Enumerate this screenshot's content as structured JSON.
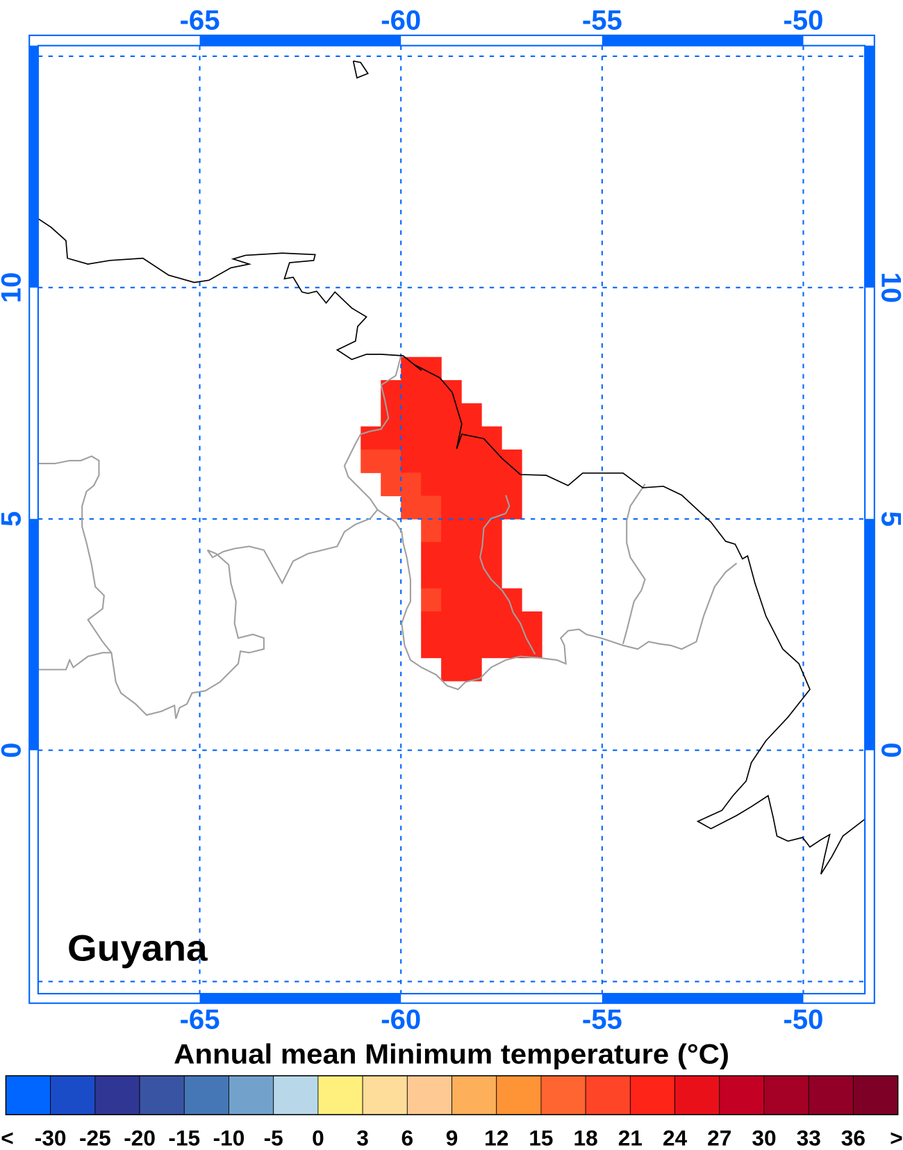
{
  "map": {
    "region_label": "Guyana",
    "extent": {
      "lon": [
        -69,
        -48.5
      ],
      "lat": [
        -5.2,
        15.2
      ]
    },
    "lon_ticks": [
      "-65",
      "-60",
      "-55",
      "-50"
    ],
    "lon_tick_values": [
      -65,
      -60,
      -55,
      -50
    ],
    "lat_ticks": [
      "10",
      "5",
      "0"
    ],
    "lat_tick_values": [
      10,
      5,
      0
    ],
    "gridlines_lat": [
      15,
      10,
      5,
      0,
      -5
    ],
    "gridlines_lon": [
      -65,
      -60,
      -55,
      -50
    ],
    "frame_color": "#0066FF",
    "coastline_color": "#000000",
    "border_color": "#A0A0A0",
    "cell_size_deg": 0.5,
    "cell_rows": [
      {
        "lat_top": 8.5,
        "lon_from": -60.0,
        "lon_to": -59.0,
        "lighter": []
      },
      {
        "lat_top": 8.0,
        "lon_from": -60.5,
        "lon_to": -58.5,
        "lighter": []
      },
      {
        "lat_top": 7.5,
        "lon_from": -60.5,
        "lon_to": -58.0,
        "lighter": []
      },
      {
        "lat_top": 7.0,
        "lon_from": -61.0,
        "lon_to": -57.5,
        "lighter": []
      },
      {
        "lat_top": 6.5,
        "lon_from": -61.0,
        "lon_to": -57.0,
        "lighter": [
          -61.0,
          -60.5
        ]
      },
      {
        "lat_top": 6.0,
        "lon_from": -60.5,
        "lon_to": -57.0,
        "lighter": [
          -60.5,
          -60.0
        ]
      },
      {
        "lat_top": 5.5,
        "lon_from": -60.0,
        "lon_to": -57.0,
        "lighter": [
          -60.0,
          -59.5
        ]
      },
      {
        "lat_top": 5.0,
        "lon_from": -59.5,
        "lon_to": -57.5,
        "lighter": [
          -59.5
        ]
      },
      {
        "lat_top": 4.5,
        "lon_from": -59.5,
        "lon_to": -57.5,
        "lighter": []
      },
      {
        "lat_top": 4.0,
        "lon_from": -59.5,
        "lon_to": -57.5,
        "lighter": []
      },
      {
        "lat_top": 3.5,
        "lon_from": -59.5,
        "lon_to": -57.0,
        "lighter": [
          -59.5
        ]
      },
      {
        "lat_top": 3.0,
        "lon_from": -59.5,
        "lon_to": -56.5,
        "lighter": []
      },
      {
        "lat_top": 2.5,
        "lon_from": -59.5,
        "lon_to": -56.5,
        "lighter": []
      },
      {
        "lat_top": 2.0,
        "lon_from": -59.0,
        "lon_to": -58.0,
        "lighter": []
      }
    ],
    "cell_bin_default": "21 to 24",
    "cell_bin_lighter": "18 to 21",
    "cell_color_default": "#FF2418",
    "cell_color_lighter": "#FF4528"
  },
  "legend": {
    "title": "Annual mean Minimum temperature (°C)",
    "labels": [
      "<",
      "-30",
      "-25",
      "-20",
      "-15",
      "-10",
      "-5",
      "0",
      "3",
      "6",
      "9",
      "12",
      "15",
      "18",
      "21",
      "24",
      "27",
      "30",
      "33",
      "36",
      ">"
    ],
    "colors": [
      "#0066FF",
      "#1A4CC8",
      "#303694",
      "#3A54A4",
      "#4577B6",
      "#72A2CC",
      "#B8D8EA",
      "#FFF07E",
      "#FEDC9A",
      "#FFC994",
      "#FDAF5A",
      "#FF9436",
      "#FF6530",
      "#FF4528",
      "#FF2418",
      "#E9101A",
      "#C40024",
      "#A50026",
      "#920028",
      "#7F0026"
    ]
  }
}
